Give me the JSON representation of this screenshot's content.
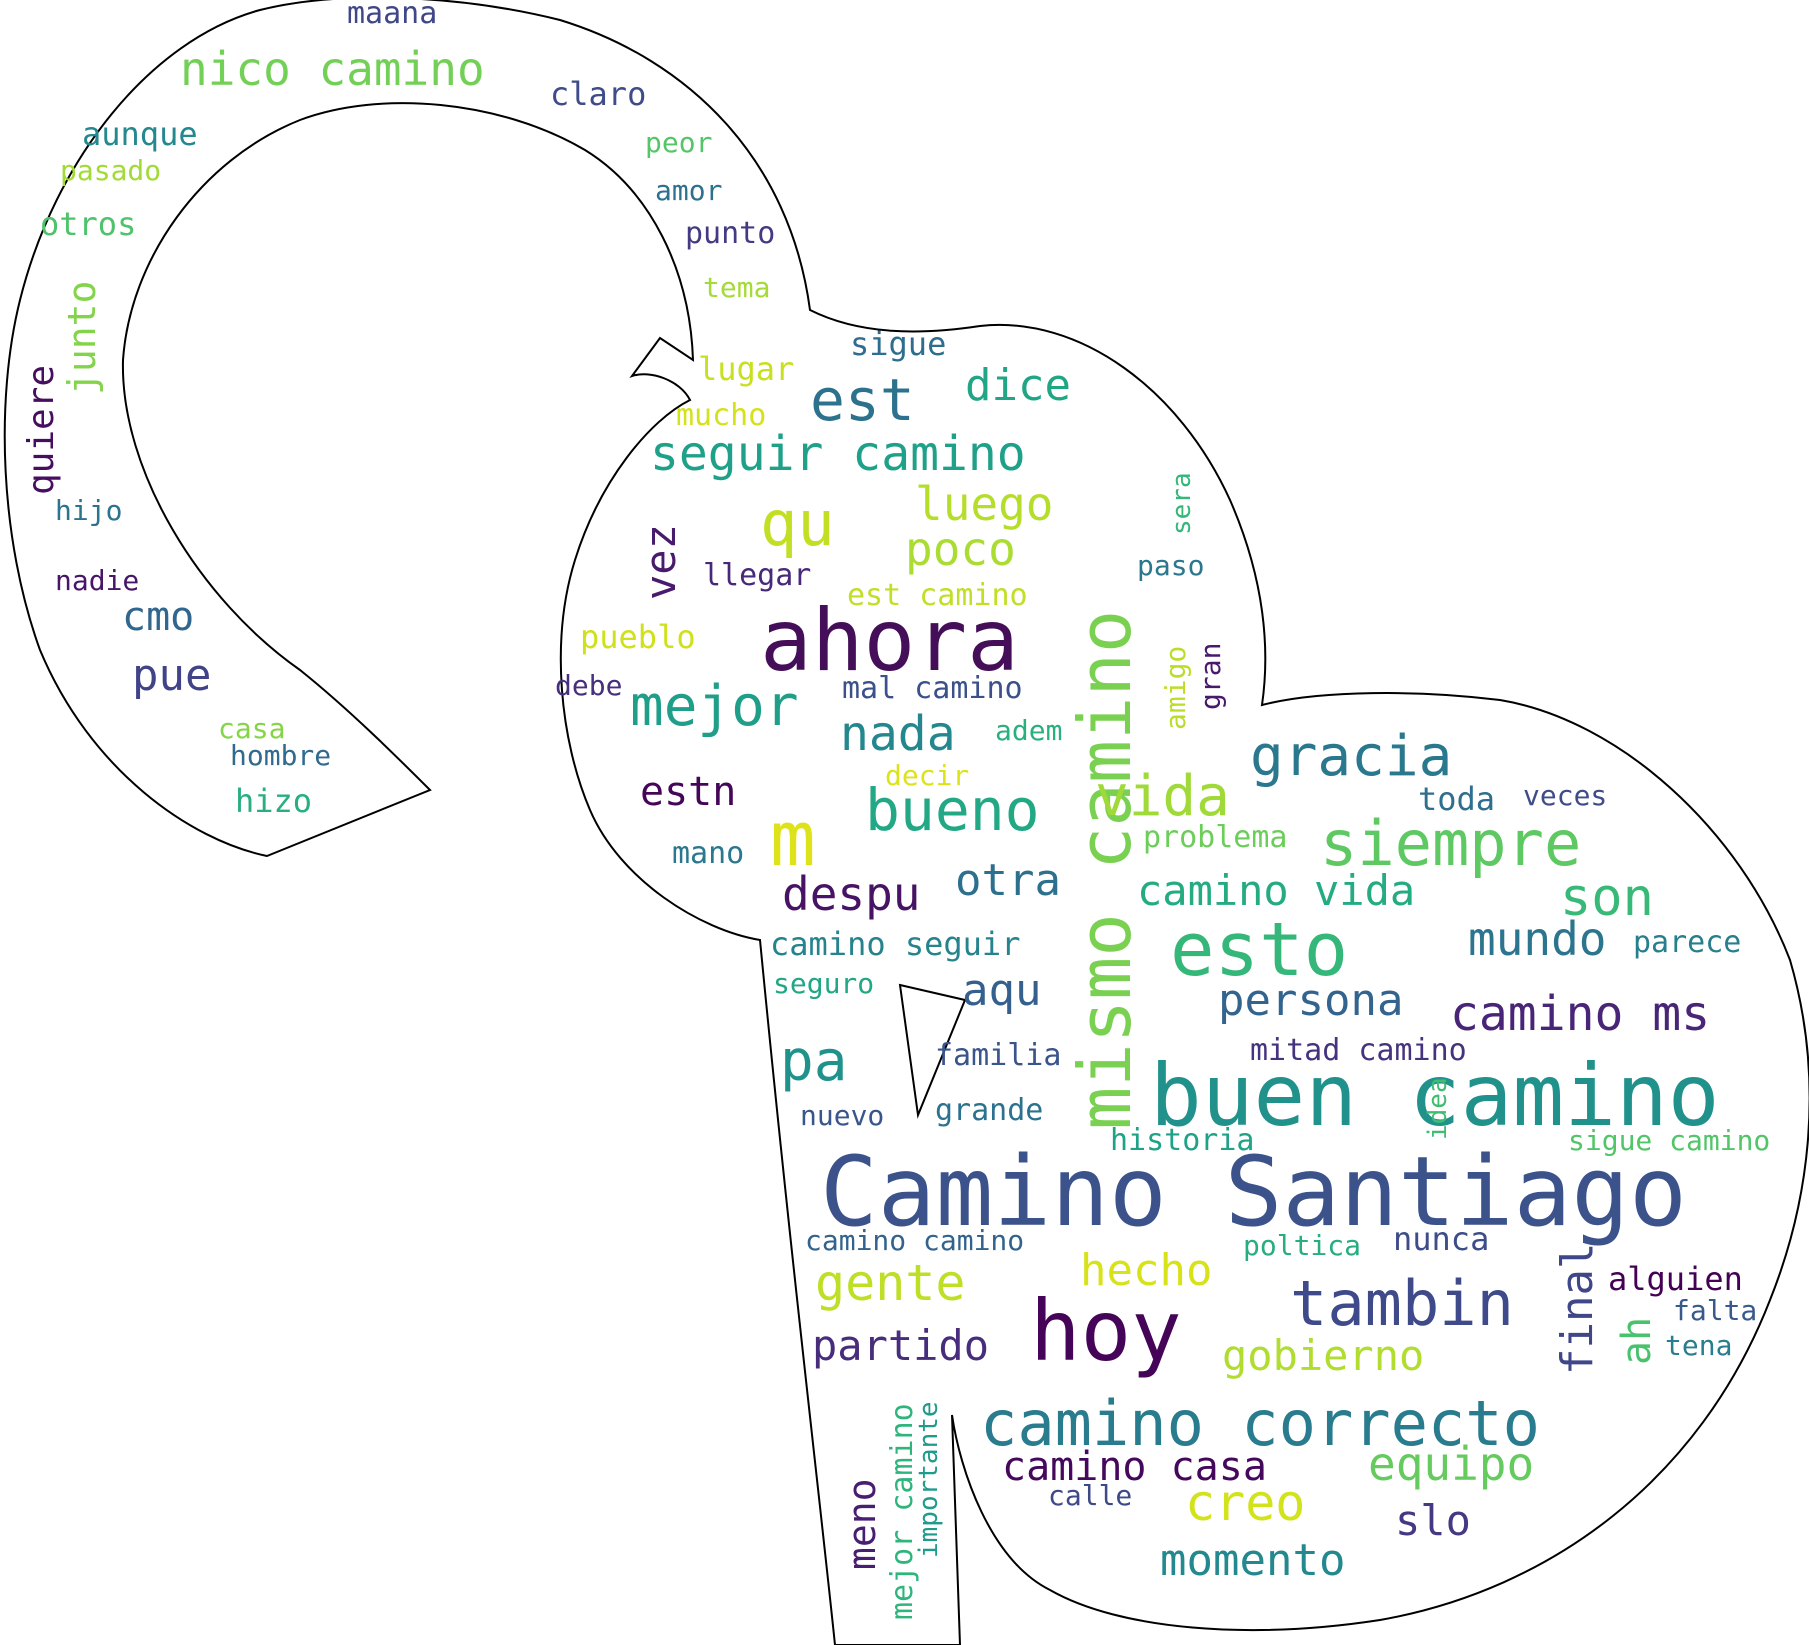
{
  "outline_color": "#000000",
  "background_color": "#ffffff",
  "words": [
    {
      "text": "Camino Santiago",
      "color": "#3b528b"
    },
    {
      "text": "ahora",
      "color": "#440f58"
    },
    {
      "text": "hoy",
      "color": "#450457"
    },
    {
      "text": "buen camino",
      "color": "#21918c"
    },
    {
      "text": "mismo camino",
      "color": "#7ad151"
    },
    {
      "text": "esto",
      "color": "#35b779"
    },
    {
      "text": "camino correcto",
      "color": "#297b8e"
    },
    {
      "text": "m",
      "color": "#dde318"
    },
    {
      "text": "tambin",
      "color": "#3e4a89"
    },
    {
      "text": "siempre",
      "color": "#5ec962"
    },
    {
      "text": "gracia",
      "color": "#2a788e"
    },
    {
      "text": "bueno",
      "color": "#22a884"
    },
    {
      "text": "mejor",
      "color": "#1f9e89"
    },
    {
      "text": "qu",
      "color": "#c2df23"
    },
    {
      "text": "vida",
      "color": "#a0da39"
    },
    {
      "text": "pa",
      "color": "#20928c"
    },
    {
      "text": "est",
      "color": "#2c728e"
    },
    {
      "text": "seguir camino",
      "color": "#1fa088"
    },
    {
      "text": "son",
      "color": "#38b977"
    },
    {
      "text": "camino ms",
      "color": "#482576"
    },
    {
      "text": "despu",
      "color": "#471365"
    },
    {
      "text": "mundo",
      "color": "#2b758e"
    },
    {
      "text": "persona",
      "color": "#32648e"
    },
    {
      "text": "gente",
      "color": "#bddf26"
    },
    {
      "text": "equipo",
      "color": "#65cb5e"
    },
    {
      "text": "creo",
      "color": "#d2e21b"
    },
    {
      "text": "momento",
      "color": "#23898e"
    },
    {
      "text": "nico camino",
      "color": "#73d056"
    },
    {
      "text": "camino vida",
      "color": "#25ab82"
    },
    {
      "text": "nada",
      "color": "#24878e"
    },
    {
      "text": "luego",
      "color": "#b5de2b"
    },
    {
      "text": "poco",
      "color": "#aadc32"
    },
    {
      "text": "dice",
      "color": "#21a685"
    },
    {
      "text": "otra",
      "color": "#2d708e"
    },
    {
      "text": "aqu",
      "color": "#355f8d"
    },
    {
      "text": "partido",
      "color": "#472d7b"
    },
    {
      "text": "gobierno",
      "color": "#b0dd2f"
    },
    {
      "text": "camino casa",
      "color": "#46085c"
    },
    {
      "text": "hecho",
      "color": "#d8e219"
    },
    {
      "text": "slo",
      "color": "#443983"
    },
    {
      "text": "final",
      "color": "#3f4788"
    },
    {
      "text": "ah",
      "color": "#4ac16d"
    },
    {
      "text": "vez",
      "color": "#481b6d"
    },
    {
      "text": "pue",
      "color": "#404387"
    },
    {
      "text": "cmo",
      "color": "#31668e"
    },
    {
      "text": "estn",
      "color": "#450559"
    },
    {
      "text": "junto",
      "color": "#84d44b"
    },
    {
      "text": "quiere",
      "color": "#470d60"
    },
    {
      "text": "meno",
      "color": "#481f70"
    },
    {
      "text": "mejor camino",
      "color": "#2fb47c"
    },
    {
      "text": "camino seguir",
      "color": "#25838e"
    },
    {
      "text": "alguien",
      "color": "#440154"
    },
    {
      "text": "toda",
      "color": "#2e6e8e"
    },
    {
      "text": "nunca",
      "color": "#3d4d8a"
    },
    {
      "text": "problema",
      "color": "#6ccd5a"
    },
    {
      "text": "mitad camino",
      "color": "#46337f"
    },
    {
      "text": "historia",
      "color": "#1fa287"
    },
    {
      "text": "familia",
      "color": "#3a548c"
    },
    {
      "text": "grande",
      "color": "#2c718e"
    },
    {
      "text": "nuevo",
      "color": "#39568c"
    },
    {
      "text": "camino camino",
      "color": "#33638d"
    },
    {
      "text": "poltica",
      "color": "#26ad81"
    },
    {
      "text": "calle",
      "color": "#3e4989"
    },
    {
      "text": "importante",
      "color": "#1e9b8a"
    },
    {
      "text": "veces",
      "color": "#3e4c8a"
    },
    {
      "text": "parece",
      "color": "#277f8e"
    },
    {
      "text": "falta",
      "color": "#38598c"
    },
    {
      "text": "tena",
      "color": "#287d8e"
    },
    {
      "text": "sigue camino",
      "color": "#52c569"
    },
    {
      "text": "idea",
      "color": "#40bd72"
    },
    {
      "text": "seguro",
      "color": "#22a785"
    },
    {
      "text": "mano",
      "color": "#2a788e"
    },
    {
      "text": "decir",
      "color": "#dce319"
    },
    {
      "text": "adem",
      "color": "#2ab07f"
    },
    {
      "text": "mal camino",
      "color": "#3b518b"
    },
    {
      "text": "debe",
      "color": "#472f7d"
    },
    {
      "text": "pueblo",
      "color": "#d0e11c"
    },
    {
      "text": "llegar",
      "color": "#482979"
    },
    {
      "text": "est camino",
      "color": "#c0df25"
    },
    {
      "text": "gran",
      "color": "#481a6c"
    },
    {
      "text": "amigo",
      "color": "#bade28"
    },
    {
      "text": "paso",
      "color": "#2a778e"
    },
    {
      "text": "sera",
      "color": "#35b779"
    },
    {
      "text": "sigue",
      "color": "#2e6d8e"
    },
    {
      "text": "lugar",
      "color": "#c8e020"
    },
    {
      "text": "mucho",
      "color": "#d5e21a"
    },
    {
      "text": "tema",
      "color": "#a5db36"
    },
    {
      "text": "punto",
      "color": "#443a83"
    },
    {
      "text": "amor",
      "color": "#2d718e"
    },
    {
      "text": "peor",
      "color": "#54c568"
    },
    {
      "text": "claro",
      "color": "#3e4c8a"
    },
    {
      "text": "maana",
      "color": "#3f4788"
    },
    {
      "text": "aunque",
      "color": "#23898e"
    },
    {
      "text": "pasado",
      "color": "#a2da37"
    },
    {
      "text": "otros",
      "color": "#4ec36b"
    },
    {
      "text": "hijo",
      "color": "#2b748e"
    },
    {
      "text": "nadie",
      "color": "#481668"
    },
    {
      "text": "casa",
      "color": "#86d549"
    },
    {
      "text": "hombre",
      "color": "#306a8e"
    },
    {
      "text": "hizo",
      "color": "#29af7f"
    }
  ]
}
